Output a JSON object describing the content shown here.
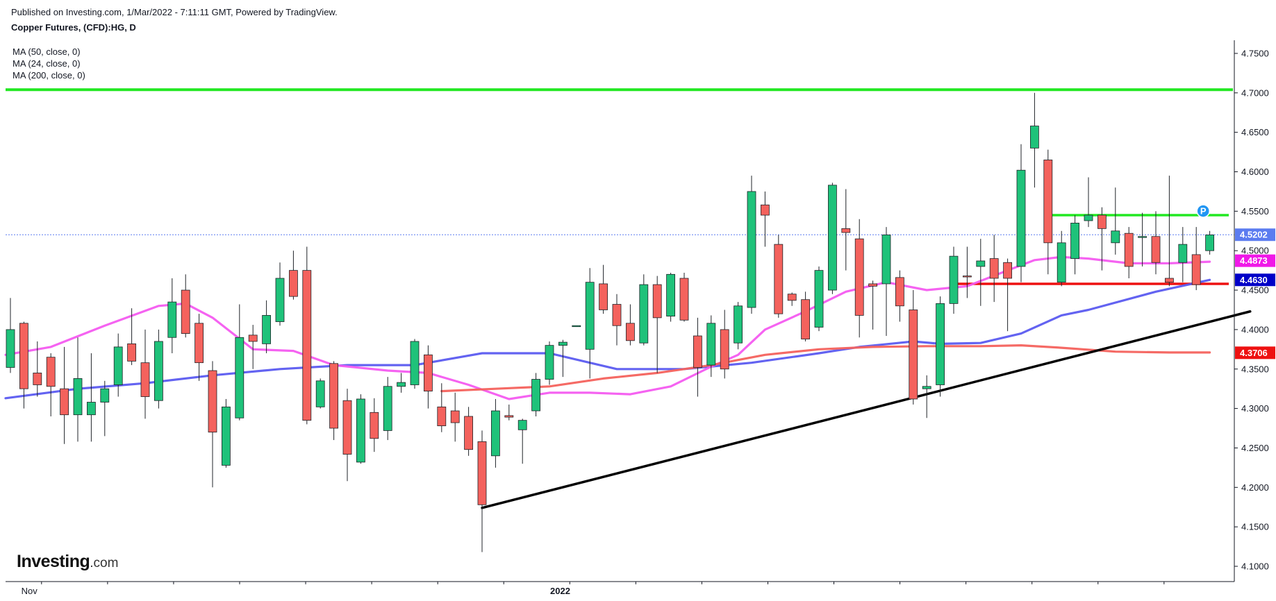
{
  "header": {
    "published": "Published on Investing.com, 1/Mar/2022 - 7:11:11 GMT, Powered by TradingView.",
    "title": "Copper Futures, (CFD):HG, D"
  },
  "legend": [
    "MA (50, close, 0)",
    "MA (24, close, 0)",
    "MA (200, close, 0)"
  ],
  "logo": {
    "brand": "Investing",
    "suffix": ".com"
  },
  "colors": {
    "up": "#1fc27a",
    "down": "#f4625d",
    "wick": "#1f2328",
    "ma50": "#5b5bf0",
    "ma24": "#f45bf0",
    "ma200": "#f4625d",
    "green_level": "#22e822",
    "red_level": "#ee1111",
    "trendline": "#000000",
    "last_price": "#5b7cf0",
    "axis": "#131722"
  },
  "chart_data": {
    "type": "candlestick",
    "title": "Copper Futures, (CFD):HG, D",
    "ylim": [
      4.09,
      4.77
    ],
    "y_ticks": [
      "4.1000",
      "4.1500",
      "4.2000",
      "4.2500",
      "4.3000",
      "4.3500",
      "4.4000",
      "4.4500",
      "4.5000",
      "4.5500",
      "4.6000",
      "4.6500",
      "4.7000",
      "4.7500"
    ],
    "x_labels": [
      "Nov",
      "2022"
    ],
    "grid": false,
    "candles": [
      {
        "o": 4.352,
        "h": 4.44,
        "l": 4.345,
        "c": 4.4
      },
      {
        "o": 4.408,
        "h": 4.41,
        "l": 4.3,
        "c": 4.325
      },
      {
        "o": 4.345,
        "h": 4.385,
        "l": 4.315,
        "c": 4.33
      },
      {
        "o": 4.365,
        "h": 4.37,
        "l": 4.29,
        "c": 4.328
      },
      {
        "o": 4.325,
        "h": 4.378,
        "l": 4.255,
        "c": 4.292
      },
      {
        "o": 4.292,
        "h": 4.39,
        "l": 4.258,
        "c": 4.338
      },
      {
        "o": 4.292,
        "h": 4.37,
        "l": 4.258,
        "c": 4.308
      },
      {
        "o": 4.308,
        "h": 4.335,
        "l": 4.265,
        "c": 4.325
      },
      {
        "o": 4.33,
        "h": 4.395,
        "l": 4.315,
        "c": 4.378
      },
      {
        "o": 4.382,
        "h": 4.427,
        "l": 4.355,
        "c": 4.36
      },
      {
        "o": 4.358,
        "h": 4.4,
        "l": 4.287,
        "c": 4.315
      },
      {
        "o": 4.31,
        "h": 4.4,
        "l": 4.3,
        "c": 4.385
      },
      {
        "o": 4.39,
        "h": 4.465,
        "l": 4.37,
        "c": 4.435
      },
      {
        "o": 4.45,
        "h": 4.47,
        "l": 4.39,
        "c": 4.395
      },
      {
        "o": 4.408,
        "h": 4.42,
        "l": 4.335,
        "c": 4.358
      },
      {
        "o": 4.348,
        "h": 4.36,
        "l": 4.2,
        "c": 4.27
      },
      {
        "o": 4.228,
        "h": 4.312,
        "l": 4.225,
        "c": 4.302
      },
      {
        "o": 4.288,
        "h": 4.432,
        "l": 4.285,
        "c": 4.39
      },
      {
        "o": 4.393,
        "h": 4.406,
        "l": 4.35,
        "c": 4.385
      },
      {
        "o": 4.382,
        "h": 4.437,
        "l": 4.37,
        "c": 4.418
      },
      {
        "o": 4.41,
        "h": 4.485,
        "l": 4.405,
        "c": 4.465
      },
      {
        "o": 4.475,
        "h": 4.5,
        "l": 4.438,
        "c": 4.442
      },
      {
        "o": 4.475,
        "h": 4.505,
        "l": 4.28,
        "c": 4.285
      },
      {
        "o": 4.302,
        "h": 4.338,
        "l": 4.3,
        "c": 4.335
      },
      {
        "o": 4.357,
        "h": 4.36,
        "l": 4.26,
        "c": 4.275
      },
      {
        "o": 4.31,
        "h": 4.325,
        "l": 4.208,
        "c": 4.242
      },
      {
        "o": 4.232,
        "h": 4.318,
        "l": 4.23,
        "c": 4.312
      },
      {
        "o": 4.295,
        "h": 4.313,
        "l": 4.245,
        "c": 4.262
      },
      {
        "o": 4.272,
        "h": 4.34,
        "l": 4.26,
        "c": 4.328
      },
      {
        "o": 4.328,
        "h": 4.345,
        "l": 4.32,
        "c": 4.333
      },
      {
        "o": 4.33,
        "h": 4.388,
        "l": 4.325,
        "c": 4.385
      },
      {
        "o": 4.368,
        "h": 4.38,
        "l": 4.3,
        "c": 4.322
      },
      {
        "o": 4.302,
        "h": 4.332,
        "l": 4.27,
        "c": 4.278
      },
      {
        "o": 4.297,
        "h": 4.32,
        "l": 4.258,
        "c": 4.282
      },
      {
        "o": 4.29,
        "h": 4.302,
        "l": 4.24,
        "c": 4.248
      },
      {
        "o": 4.258,
        "h": 4.272,
        "l": 4.118,
        "c": 4.178
      },
      {
        "o": 4.24,
        "h": 4.312,
        "l": 4.225,
        "c": 4.297
      },
      {
        "o": 4.291,
        "h": 4.305,
        "l": 4.285,
        "c": 4.289
      },
      {
        "o": 4.273,
        "h": 4.287,
        "l": 4.23,
        "c": 4.285
      },
      {
        "o": 4.297,
        "h": 4.345,
        "l": 4.29,
        "c": 4.337
      },
      {
        "o": 4.337,
        "h": 4.385,
        "l": 4.33,
        "c": 4.38
      },
      {
        "o": 4.38,
        "h": 4.387,
        "l": 4.34,
        "c": 4.384
      },
      {
        "o": 4.405,
        "h": 4.405,
        "l": 4.405,
        "c": 4.405
      },
      {
        "o": 4.375,
        "h": 4.478,
        "l": 4.338,
        "c": 4.46
      },
      {
        "o": 4.458,
        "h": 4.482,
        "l": 4.42,
        "c": 4.425
      },
      {
        "o": 4.432,
        "h": 4.445,
        "l": 4.38,
        "c": 4.405
      },
      {
        "o": 4.408,
        "h": 4.432,
        "l": 4.38,
        "c": 4.386
      },
      {
        "o": 4.383,
        "h": 4.47,
        "l": 4.38,
        "c": 4.457
      },
      {
        "o": 4.457,
        "h": 4.468,
        "l": 4.345,
        "c": 4.415
      },
      {
        "o": 4.417,
        "h": 4.472,
        "l": 4.41,
        "c": 4.47
      },
      {
        "o": 4.465,
        "h": 4.472,
        "l": 4.41,
        "c": 4.412
      },
      {
        "o": 4.392,
        "h": 4.415,
        "l": 4.315,
        "c": 4.352
      },
      {
        "o": 4.355,
        "h": 4.418,
        "l": 4.34,
        "c": 4.408
      },
      {
        "o": 4.4,
        "h": 4.425,
        "l": 4.338,
        "c": 4.35
      },
      {
        "o": 4.383,
        "h": 4.435,
        "l": 4.375,
        "c": 4.43
      },
      {
        "o": 4.428,
        "h": 4.595,
        "l": 4.42,
        "c": 4.575
      },
      {
        "o": 4.558,
        "h": 4.575,
        "l": 4.505,
        "c": 4.545
      },
      {
        "o": 4.508,
        "h": 4.52,
        "l": 4.415,
        "c": 4.42
      },
      {
        "o": 4.445,
        "h": 4.447,
        "l": 4.43,
        "c": 4.437
      },
      {
        "o": 4.438,
        "h": 4.448,
        "l": 4.385,
        "c": 4.388
      },
      {
        "o": 4.403,
        "h": 4.48,
        "l": 4.398,
        "c": 4.475
      },
      {
        "o": 4.45,
        "h": 4.586,
        "l": 4.445,
        "c": 4.583
      },
      {
        "o": 4.528,
        "h": 4.578,
        "l": 4.475,
        "c": 4.523
      },
      {
        "o": 4.515,
        "h": 4.54,
        "l": 4.39,
        "c": 4.418
      },
      {
        "o": 4.458,
        "h": 4.462,
        "l": 4.4,
        "c": 4.455
      },
      {
        "o": 4.458,
        "h": 4.53,
        "l": 4.392,
        "c": 4.52
      },
      {
        "o": 4.466,
        "h": 4.475,
        "l": 4.41,
        "c": 4.43
      },
      {
        "o": 4.425,
        "h": 4.45,
        "l": 4.305,
        "c": 4.312
      },
      {
        "o": 4.325,
        "h": 4.342,
        "l": 4.288,
        "c": 4.328
      },
      {
        "o": 4.33,
        "h": 4.442,
        "l": 4.315,
        "c": 4.433
      },
      {
        "o": 4.433,
        "h": 4.505,
        "l": 4.42,
        "c": 4.493
      },
      {
        "o": 4.468,
        "h": 4.505,
        "l": 4.44,
        "c": 4.467
      },
      {
        "o": 4.48,
        "h": 4.515,
        "l": 4.43,
        "c": 4.487
      },
      {
        "o": 4.49,
        "h": 4.52,
        "l": 4.435,
        "c": 4.465
      },
      {
        "o": 4.485,
        "h": 4.49,
        "l": 4.398,
        "c": 4.465
      },
      {
        "o": 4.48,
        "h": 4.635,
        "l": 4.46,
        "c": 4.602
      },
      {
        "o": 4.63,
        "h": 4.7,
        "l": 4.58,
        "c": 4.658
      },
      {
        "o": 4.615,
        "h": 4.628,
        "l": 4.47,
        "c": 4.51
      },
      {
        "o": 4.46,
        "h": 4.525,
        "l": 4.455,
        "c": 4.51
      },
      {
        "o": 4.49,
        "h": 4.545,
        "l": 4.47,
        "c": 4.535
      },
      {
        "o": 4.538,
        "h": 4.593,
        "l": 4.53,
        "c": 4.545
      },
      {
        "o": 4.545,
        "h": 4.555,
        "l": 4.475,
        "c": 4.528
      },
      {
        "o": 4.51,
        "h": 4.58,
        "l": 4.495,
        "c": 4.525
      },
      {
        "o": 4.522,
        "h": 4.53,
        "l": 4.465,
        "c": 4.48
      },
      {
        "o": 4.518,
        "h": 4.548,
        "l": 4.48,
        "c": 4.518
      },
      {
        "o": 4.518,
        "h": 4.55,
        "l": 4.47,
        "c": 4.485
      },
      {
        "o": 4.465,
        "h": 4.595,
        "l": 4.455,
        "c": 4.46
      },
      {
        "o": 4.485,
        "h": 4.53,
        "l": 4.46,
        "c": 4.508
      },
      {
        "o": 4.495,
        "h": 4.53,
        "l": 4.45,
        "c": 4.457
      },
      {
        "o": 4.5,
        "h": 4.525,
        "l": 4.495,
        "c": 4.52
      }
    ],
    "series": [
      {
        "name": "MA (50, close, 0)",
        "x": [
          0,
          5,
          10,
          15,
          20,
          25,
          30,
          35,
          40,
          45,
          50,
          55,
          60,
          63,
          67,
          69,
          72,
          75,
          78,
          80,
          85,
          89
        ],
        "values": [
          4.313,
          4.325,
          4.332,
          4.342,
          4.35,
          4.355,
          4.355,
          4.37,
          4.37,
          4.35,
          4.35,
          4.358,
          4.37,
          4.378,
          4.385,
          4.382,
          4.383,
          4.395,
          4.418,
          4.425,
          4.448,
          4.463
        ]
      },
      {
        "name": "MA (24, close, 0)",
        "x": [
          0,
          3,
          7,
          11,
          13,
          15,
          18,
          21,
          24,
          28,
          31,
          34,
          37,
          40,
          43,
          46,
          49,
          52,
          54,
          56,
          59,
          62,
          65,
          68,
          71,
          74,
          76,
          78,
          80,
          83,
          86,
          89
        ],
        "values": [
          4.368,
          4.378,
          4.405,
          4.43,
          4.433,
          4.415,
          4.375,
          4.373,
          4.355,
          4.348,
          4.345,
          4.33,
          4.312,
          4.32,
          4.32,
          4.318,
          4.328,
          4.353,
          4.368,
          4.4,
          4.423,
          4.448,
          4.46,
          4.45,
          4.455,
          4.475,
          4.488,
          4.492,
          4.49,
          4.484,
          4.484,
          4.486
        ]
      },
      {
        "name": "MA (200, close, 0)",
        "x": [
          32,
          36,
          40,
          44,
          48,
          52,
          56,
          60,
          64,
          68,
          72,
          75,
          78,
          82,
          86,
          89
        ],
        "values": [
          4.322,
          4.325,
          4.328,
          4.338,
          4.345,
          4.355,
          4.368,
          4.375,
          4.378,
          4.379,
          4.379,
          4.38,
          4.377,
          4.372,
          4.371,
          4.371
        ]
      }
    ],
    "levels": [
      {
        "name": "resistance",
        "value": 4.704,
        "x_from": 0,
        "x_to": "end"
      },
      {
        "name": "upper-range",
        "value": 4.545,
        "x_from": 77,
        "x_to": 90
      },
      {
        "name": "lower-range",
        "value": 4.458,
        "x_from": 70,
        "x_to": 90
      }
    ],
    "trendline": {
      "from": {
        "x": 35,
        "y": 4.174
      },
      "to": {
        "x": 92,
        "y": 4.423
      }
    },
    "last_price": 4.5202,
    "price_labels": [
      {
        "text": "4.5202",
        "value": 4.5202,
        "color": "#5b7cf0"
      },
      {
        "text": "4.4873",
        "value": 4.4873,
        "color": "#f018e8"
      },
      {
        "text": "4.4630",
        "value": 4.463,
        "color": "#0000c8"
      },
      {
        "text": "4.3706",
        "value": 4.3706,
        "color": "#ee1111"
      }
    ],
    "marker": {
      "text": "P",
      "x": 88,
      "value": 4.552
    }
  }
}
